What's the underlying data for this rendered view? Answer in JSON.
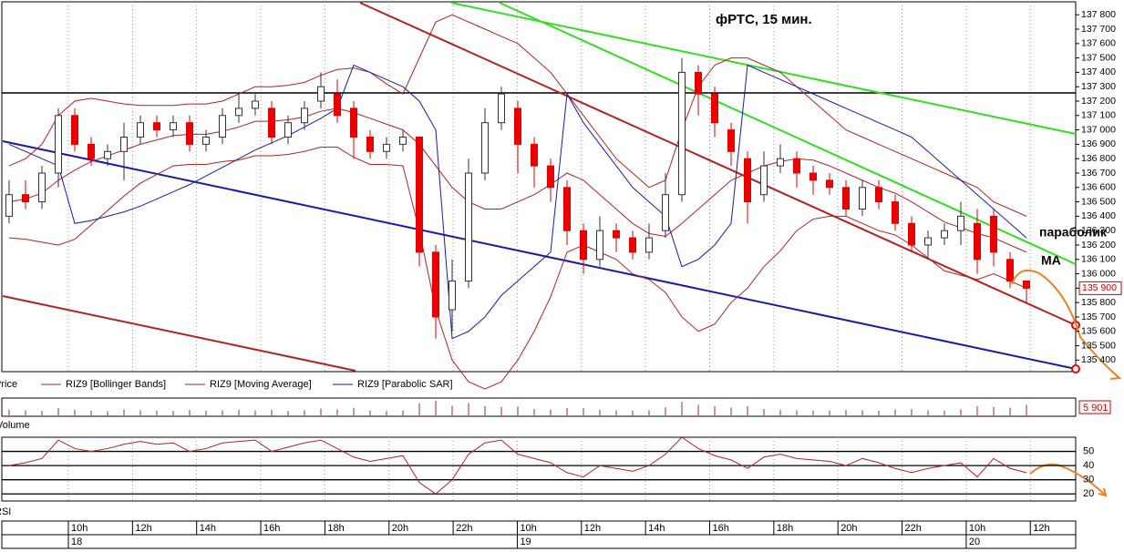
{
  "chart_data": {
    "type": "candlestick",
    "title": "фРТС,  15 мин.",
    "annotations": [
      "параболик",
      "МА"
    ],
    "legend": [
      "Price",
      "RIZ9 [Bollinger Bands]",
      "RIZ9 [Moving Average]",
      "RIZ9 [Parabolic SAR]"
    ],
    "panels": [
      "Volume",
      "RSI"
    ],
    "ylim": [
      135320,
      137890
    ],
    "yticks": [
      {
        "value": 135400,
        "label": "135 400"
      },
      {
        "value": 135500,
        "label": "135 500"
      },
      {
        "value": 135600,
        "label": "135 600"
      },
      {
        "value": 135700,
        "label": "135 700"
      },
      {
        "value": 135800,
        "label": "135 800"
      },
      {
        "value": 135900,
        "label": "135 900"
      },
      {
        "value": 136000,
        "label": "136 000"
      },
      {
        "value": 136100,
        "label": "136 100"
      },
      {
        "value": 136200,
        "label": "136 200"
      },
      {
        "value": 136300,
        "label": "136 300"
      },
      {
        "value": 136400,
        "label": "136 400"
      },
      {
        "value": 136500,
        "label": "136 500"
      },
      {
        "value": 136600,
        "label": "136 600"
      },
      {
        "value": 136700,
        "label": "136 700"
      },
      {
        "value": 136800,
        "label": "136 800"
      },
      {
        "value": 136900,
        "label": "136 900"
      },
      {
        "value": 137000,
        "label": "137 000"
      },
      {
        "value": 137100,
        "label": "137 100"
      },
      {
        "value": 137200,
        "label": "137 200"
      },
      {
        "value": 137300,
        "label": "137 300"
      },
      {
        "value": 137400,
        "label": "137 400"
      },
      {
        "value": 137500,
        "label": "137 500"
      },
      {
        "value": 137600,
        "label": "137 600"
      },
      {
        "value": 137700,
        "label": "137 700"
      },
      {
        "value": 137800,
        "label": "137 800"
      }
    ],
    "last_price": {
      "value": 135900,
      "label": "135 900"
    },
    "last_volume": "5 901",
    "time_axis": [
      {
        "time": "10h",
        "date": "18"
      },
      {
        "time": "12h"
      },
      {
        "time": "14h"
      },
      {
        "time": "16h"
      },
      {
        "time": "18h"
      },
      {
        "time": "20h"
      },
      {
        "time": "22h"
      },
      {
        "time": "10h",
        "date": "19"
      },
      {
        "time": "12h"
      },
      {
        "time": "14h"
      },
      {
        "time": "16h"
      },
      {
        "time": "18h"
      },
      {
        "time": "20h"
      },
      {
        "time": "22h"
      },
      {
        "time": "10h",
        "date": "20"
      },
      {
        "time": "12h"
      }
    ],
    "open": [
      136400,
      136550,
      136500,
      136700,
      137100,
      136900,
      136800,
      136850,
      136950,
      137050,
      137000,
      137050,
      136900,
      136950,
      137100,
      137150,
      137150,
      136950,
      137050,
      137200,
      137250,
      137150,
      136950,
      136850,
      136900,
      136950,
      136150,
      135750,
      135950,
      136700,
      137050,
      137150,
      136900,
      136750,
      136600,
      136300,
      136100,
      136300,
      136250,
      136150,
      136300,
      136550,
      137400,
      137250,
      137000,
      136800,
      136550,
      136750,
      136800,
      136700,
      136650,
      136600,
      136450,
      136600,
      136500,
      136350,
      136200,
      136250,
      136300,
      136350,
      136400,
      136100,
      135950
    ],
    "close": [
      136550,
      136500,
      136700,
      137100,
      136900,
      136800,
      136850,
      136950,
      137050,
      137000,
      137050,
      136900,
      136950,
      137100,
      137150,
      137200,
      136950,
      137050,
      137150,
      137300,
      137100,
      136950,
      136850,
      136900,
      136950,
      136150,
      135700,
      135950,
      136700,
      137050,
      137250,
      136900,
      136750,
      136600,
      136300,
      136100,
      136300,
      136250,
      136150,
      136250,
      136550,
      137400,
      137250,
      137050,
      136850,
      136500,
      136750,
      136800,
      136700,
      136650,
      136600,
      136450,
      136600,
      136500,
      136350,
      136200,
      136250,
      136300,
      136400,
      136100,
      136150,
      135950,
      135900
    ],
    "high": [
      136650,
      136650,
      136750,
      137150,
      137150,
      136950,
      136900,
      137050,
      137100,
      137100,
      137100,
      137100,
      137000,
      137150,
      137250,
      137250,
      137200,
      137100,
      137200,
      137400,
      137350,
      137200,
      137000,
      136950,
      137000,
      136950,
      136200,
      136100,
      136800,
      137150,
      137300,
      137200,
      136950,
      136800,
      136650,
      136350,
      136400,
      136350,
      136300,
      136350,
      136700,
      137500,
      137450,
      137300,
      137050,
      136850,
      136850,
      136900,
      136850,
      136750,
      136700,
      136650,
      136650,
      136650,
      136550,
      136400,
      136300,
      136350,
      136500,
      136450,
      136450,
      136150,
      135950
    ],
    "low": [
      136350,
      136450,
      136450,
      136600,
      136850,
      136750,
      136750,
      136650,
      136900,
      136950,
      136950,
      136850,
      136850,
      136900,
      137050,
      137100,
      136900,
      136900,
      137000,
      137150,
      137050,
      136800,
      136800,
      136800,
      136850,
      136050,
      135550,
      135600,
      135900,
      136650,
      137000,
      136700,
      136600,
      136500,
      136200,
      136000,
      136050,
      136150,
      136100,
      136100,
      136250,
      136500,
      137100,
      136950,
      136750,
      136350,
      136500,
      136700,
      136600,
      136550,
      136550,
      136400,
      136400,
      136450,
      136300,
      136150,
      136100,
      136200,
      136200,
      136000,
      136050,
      135900,
      135800
    ],
    "ma": [
      136500,
      136520,
      136560,
      136650,
      136720,
      136780,
      136820,
      136860,
      136900,
      136930,
      136960,
      136970,
      136970,
      136990,
      137020,
      137060,
      137060,
      137070,
      137090,
      137130,
      137150,
      137120,
      137080,
      137040,
      137000,
      136900,
      136750,
      136600,
      136500,
      136450,
      136450,
      136500,
      136550,
      136620,
      136700,
      136650,
      136550,
      136450,
      136350,
      136280,
      136260,
      136350,
      136450,
      136550,
      136650,
      136700,
      136750,
      136780,
      136800,
      136790,
      136750,
      136700,
      136650,
      136600,
      136560,
      136500,
      136430,
      136360,
      136320,
      136280,
      136250,
      136200,
      136150
    ],
    "bb_upper": [
      136750,
      136800,
      136900,
      137100,
      137200,
      137220,
      137200,
      137180,
      137170,
      137170,
      137170,
      137180,
      137180,
      137200,
      137250,
      137300,
      137300,
      137310,
      137330,
      137380,
      137420,
      137430,
      137400,
      137320,
      137250,
      137500,
      137750,
      137800,
      137750,
      137700,
      137650,
      137600,
      137500,
      137400,
      137250,
      137100,
      136950,
      136800,
      136700,
      136600,
      136650,
      137000,
      137300,
      137450,
      137500,
      137500,
      137450,
      137400,
      137300,
      137200,
      137100,
      137000,
      136950,
      136900,
      136850,
      136800,
      136750,
      136700,
      136650,
      136600,
      136500,
      136450,
      136400
    ],
    "bb_lower": [
      136250,
      136240,
      136220,
      136200,
      136240,
      136340,
      136440,
      136540,
      136630,
      136690,
      136750,
      136760,
      136760,
      136780,
      136790,
      136820,
      136820,
      136830,
      136850,
      136880,
      136880,
      136810,
      136760,
      136760,
      136750,
      136300,
      135750,
      135400,
      135250,
      135200,
      135250,
      135400,
      135600,
      135840,
      136150,
      136200,
      136150,
      136100,
      136000,
      135960,
      135870,
      135700,
      135600,
      135650,
      135800,
      135900,
      136050,
      136160,
      136300,
      136380,
      136400,
      136400,
      136350,
      136300,
      136270,
      136200,
      136110,
      136020,
      135990,
      135960,
      136000,
      135950,
      135900
    ],
    "sar": [
      136900,
      136850,
      136800,
      136750,
      136350,
      136370,
      136400,
      136430,
      136470,
      136520,
      136570,
      136620,
      136680,
      136740,
      136800,
      136860,
      136910,
      136960,
      137020,
      137080,
      137150,
      137450,
      137400,
      137350,
      137300,
      137200,
      137000,
      135550,
      135600,
      135700,
      135850,
      135950,
      136050,
      136150,
      137250,
      137050,
      136900,
      136750,
      136600,
      136500,
      136400,
      136050,
      136100,
      136200,
      136350,
      137450,
      137400,
      137350,
      137300,
      137250,
      137200,
      137150,
      137100,
      137050,
      137000,
      136950,
      136850,
      136750,
      136650,
      136550,
      136450,
      136350,
      136250
    ],
    "volume": [
      3200,
      2800,
      2500,
      4100,
      3000,
      2600,
      2400,
      3300,
      2900,
      2700,
      2500,
      3100,
      2600,
      2800,
      3000,
      2700,
      3200,
      2500,
      2900,
      3800,
      3400,
      4200,
      2600,
      2400,
      2700,
      6800,
      8200,
      5400,
      6900,
      5200,
      4800,
      5000,
      3600,
      3300,
      4100,
      3900,
      3000,
      2800,
      2600,
      2900,
      4500,
      7600,
      5900,
      5200,
      4400,
      5100,
      3600,
      3000,
      2900,
      2700,
      2600,
      3100,
      2800,
      2600,
      3300,
      3500,
      2900,
      2700,
      3400,
      5200,
      4800,
      4300,
      5901
    ],
    "rsi_ylim": [
      15,
      60
    ],
    "rsi_yticks": [
      20,
      30,
      40,
      50
    ],
    "rsi": [
      40,
      42,
      45,
      58,
      52,
      50,
      52,
      55,
      57,
      55,
      56,
      50,
      52,
      56,
      57,
      58,
      50,
      53,
      56,
      58,
      52,
      46,
      43,
      45,
      47,
      28,
      20,
      30,
      48,
      56,
      58,
      48,
      45,
      42,
      35,
      32,
      40,
      38,
      36,
      40,
      48,
      60,
      52,
      47,
      44,
      38,
      46,
      48,
      45,
      44,
      43,
      40,
      45,
      42,
      38,
      35,
      38,
      40,
      42,
      32,
      45,
      38,
      35
    ]
  }
}
